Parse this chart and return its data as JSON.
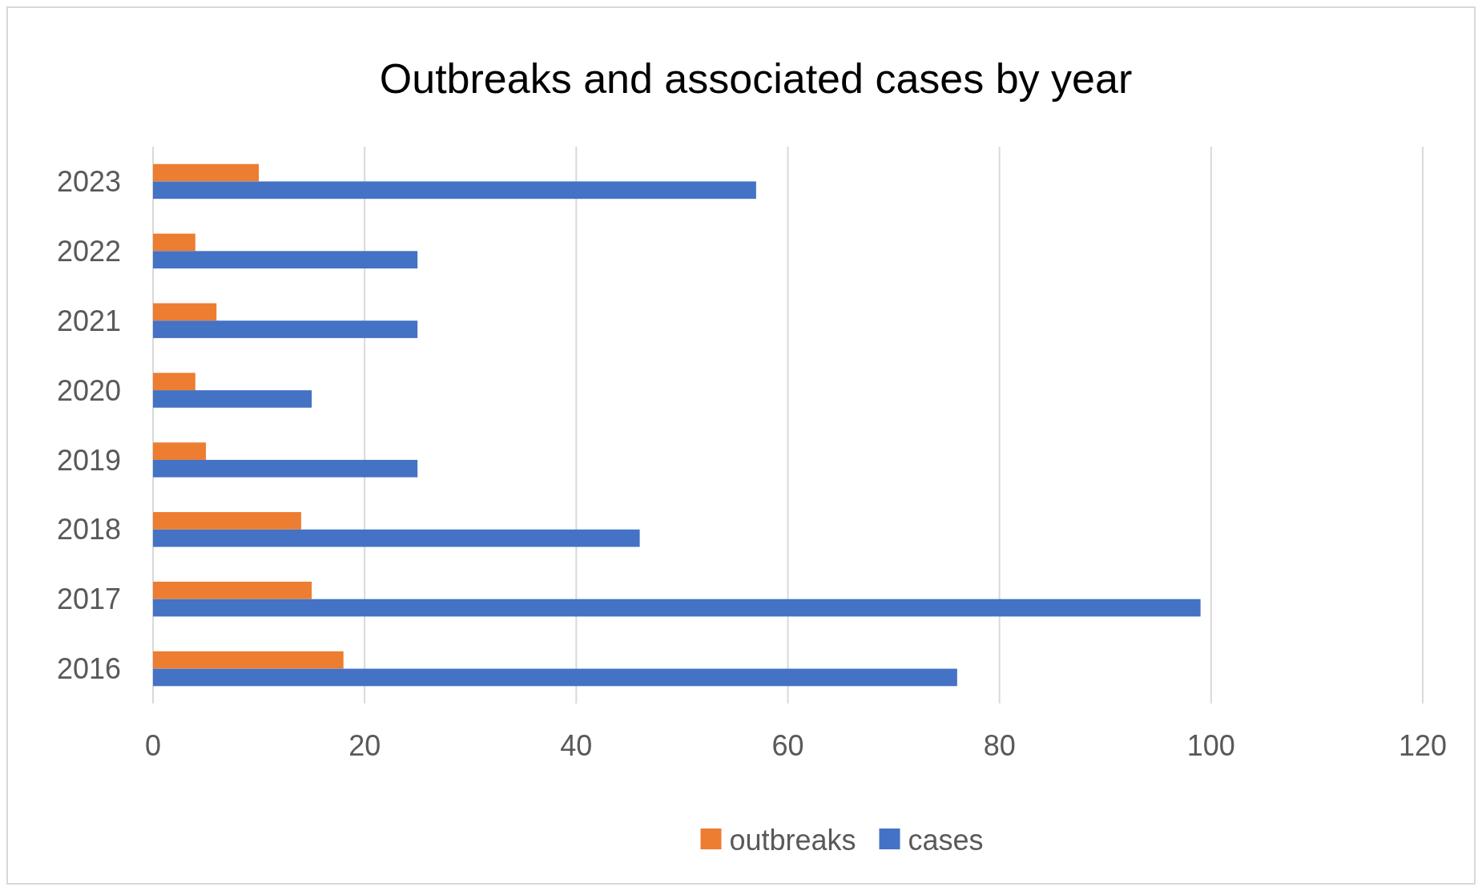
{
  "chart_data": {
    "type": "bar",
    "orientation": "horizontal",
    "title": "Outbreaks and associated cases by year",
    "categories": [
      "2023",
      "2022",
      "2021",
      "2020",
      "2019",
      "2018",
      "2017",
      "2016"
    ],
    "series": [
      {
        "name": "outbreaks",
        "color": "#ed7d31",
        "values": [
          10,
          4,
          6,
          4,
          5,
          14,
          15,
          18
        ]
      },
      {
        "name": "cases",
        "color": "#4472c4",
        "values": [
          57,
          25,
          25,
          15,
          25,
          46,
          99,
          76
        ]
      }
    ],
    "xlim": [
      0,
      120
    ],
    "xticks": [
      0,
      20,
      40,
      60,
      80,
      100,
      120
    ],
    "grid": "x",
    "legend": "bottom"
  }
}
